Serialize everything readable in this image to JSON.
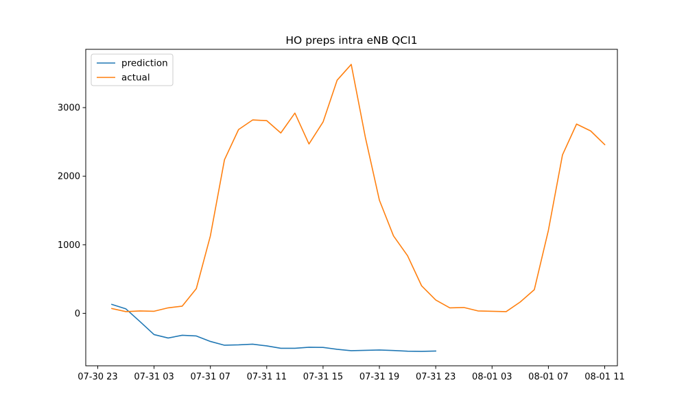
{
  "chart_data": {
    "type": "line",
    "title": "HO preps intra eNB QCI1",
    "xlabel": "",
    "ylabel": "",
    "x_ticks": [
      "07-30 23",
      "07-31 03",
      "07-31 07",
      "07-31 11",
      "07-31 15",
      "07-31 19",
      "07-31 23",
      "08-01 03",
      "08-01 07",
      "08-01 11"
    ],
    "x_tick_hours": [
      23,
      27,
      31,
      35,
      39,
      43,
      47,
      51,
      55,
      59
    ],
    "xlim_hours": [
      22.15,
      59.9
    ],
    "y_ticks": [
      0,
      1000,
      2000,
      3000
    ],
    "ylim": [
      -765,
      3850
    ],
    "legend_position": "top-left",
    "grid": false,
    "series": [
      {
        "name": "prediction",
        "color": "#1f77b4",
        "x_hours": [
          24,
          25,
          26,
          27,
          28,
          29,
          30,
          31,
          32,
          33,
          34,
          35,
          36,
          37,
          38,
          39,
          40,
          41,
          42,
          43,
          44,
          45,
          46,
          47
        ],
        "values": [
          130,
          65,
          -120,
          -310,
          -360,
          -320,
          -330,
          -410,
          -465,
          -460,
          -450,
          -475,
          -510,
          -510,
          -495,
          -497,
          -525,
          -545,
          -540,
          -535,
          -542,
          -552,
          -555,
          -550
        ]
      },
      {
        "name": "actual",
        "color": "#ff7f0e",
        "x_hours": [
          24,
          25,
          26,
          27,
          28,
          29,
          30,
          31,
          32,
          33,
          34,
          35,
          36,
          37,
          38,
          39,
          40,
          41,
          42,
          43,
          44,
          45,
          46,
          47,
          48,
          49,
          50,
          51,
          52,
          53,
          54,
          55,
          56,
          57,
          58,
          59
        ],
        "values": [
          70,
          25,
          35,
          30,
          80,
          105,
          360,
          1130,
          2240,
          2680,
          2820,
          2810,
          2630,
          2920,
          2470,
          2790,
          3400,
          3630,
          2570,
          1650,
          1130,
          840,
          400,
          195,
          80,
          85,
          35,
          30,
          25,
          165,
          345,
          1210,
          2310,
          2760,
          2660,
          2460
        ]
      }
    ]
  }
}
